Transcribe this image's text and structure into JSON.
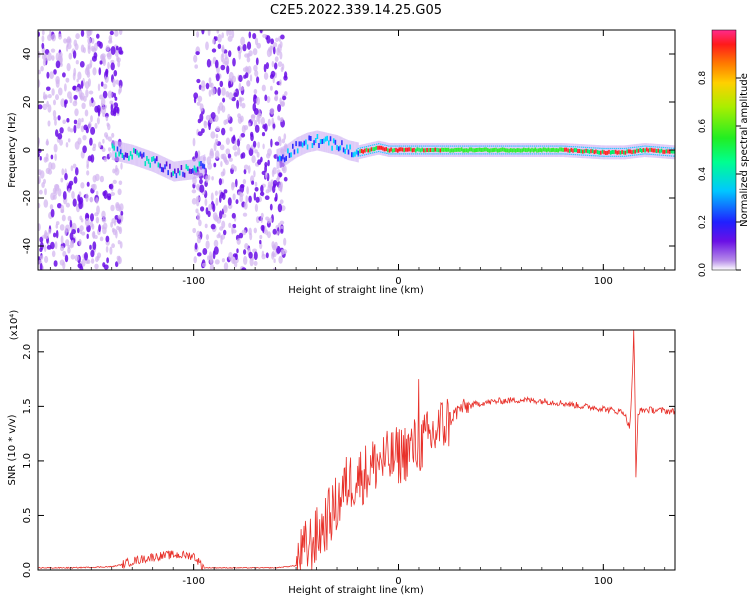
{
  "figure_title": "C2E5.2022.339.14.25.G05",
  "colors": {
    "dot_light": "#d2b4f0",
    "dot_dark": "#6a0de6",
    "snr_line": "#e8312a",
    "axis": "#000000"
  },
  "chart_data": [
    {
      "type": "heatmap",
      "title": "C2E5.2022.339.14.25.G05",
      "xlabel": "Height of straight line (km)",
      "ylabel": "Frequency (Hz)",
      "xlim": [
        -176,
        135
      ],
      "ylim": [
        -50,
        50
      ],
      "xticks": [
        -100,
        0,
        100
      ],
      "yticks": [
        -40,
        -20,
        0,
        20,
        40
      ],
      "xtick_labels": [
        "-100",
        "0",
        "100"
      ],
      "ytick_labels": [
        "-40",
        "-20",
        "0",
        "20",
        "40"
      ],
      "colorbar": {
        "label": "Normalized spectral amplitude",
        "range": [
          0,
          1
        ],
        "ticks": [
          0.0,
          0.2,
          0.4,
          0.6,
          0.8
        ],
        "tick_labels": [
          "0.0",
          "0.2",
          "0.4",
          "0.6",
          "0.8"
        ]
      },
      "ridge": {
        "x": [
          -140,
          -130,
          -120,
          -110,
          -100,
          -95,
          -60,
          -55,
          -50,
          -45,
          -40,
          -35,
          -30,
          -25,
          -20,
          -15,
          -10,
          -5,
          0,
          20,
          40,
          60,
          80,
          100,
          110,
          120,
          135
        ],
        "frequency": [
          0,
          -2,
          -5,
          -9,
          -8,
          -6,
          -4,
          -2,
          1,
          3,
          4,
          3,
          2,
          0,
          -1,
          0,
          1,
          0,
          0,
          0,
          0,
          0,
          0,
          -1,
          -1,
          0,
          -1
        ]
      },
      "noise_regions": [
        [
          -176,
          -135
        ],
        [
          -100,
          -55
        ]
      ],
      "empty_region": [
        -135,
        -100
      ]
    },
    {
      "type": "line",
      "xlabel": "Height of straight line (km)",
      "ylabel": "SNR (10 * v/v)",
      "y_multiplier": "(x10⁴)",
      "xlim": [
        -176,
        135
      ],
      "ylim": [
        0,
        2.2
      ],
      "xticks": [
        -100,
        0,
        100
      ],
      "yticks": [
        0.0,
        0.5,
        1.0,
        1.5,
        2.0
      ],
      "xtick_labels": [
        "-100",
        "0",
        "100"
      ],
      "ytick_labels": [
        "0.0",
        "0.5",
        "1.0",
        "1.5",
        "2.0"
      ],
      "series": [
        {
          "x": [
            -176,
            -160,
            -140,
            -135,
            -130,
            -120,
            -110,
            -100,
            -95,
            -80,
            -60,
            -50,
            -45,
            -40,
            -35,
            -30,
            -25,
            -20,
            -15,
            -10,
            -5,
            0,
            5,
            10,
            15,
            20,
            25,
            30,
            40,
            50,
            60,
            70,
            80,
            90,
            100,
            105,
            110,
            113,
            115,
            116,
            117,
            120,
            130,
            135
          ],
          "values": [
            0.02,
            0.02,
            0.03,
            0.05,
            0.08,
            0.12,
            0.14,
            0.13,
            0.02,
            0.02,
            0.02,
            0.04,
            0.2,
            0.3,
            0.45,
            0.6,
            0.8,
            0.85,
            0.9,
            1.0,
            1.0,
            1.05,
            1.1,
            1.15,
            1.2,
            1.3,
            1.38,
            1.48,
            1.53,
            1.55,
            1.56,
            1.55,
            1.53,
            1.5,
            1.48,
            1.46,
            1.45,
            1.3,
            2.15,
            0.9,
            1.45,
            1.47,
            1.46,
            1.45
          ],
          "spikes": [
            {
              "x": 10,
              "value": 1.75
            },
            {
              "x": 115,
              "value": 2.2
            },
            {
              "x": 116,
              "value": 0.85
            }
          ]
        }
      ]
    }
  ]
}
